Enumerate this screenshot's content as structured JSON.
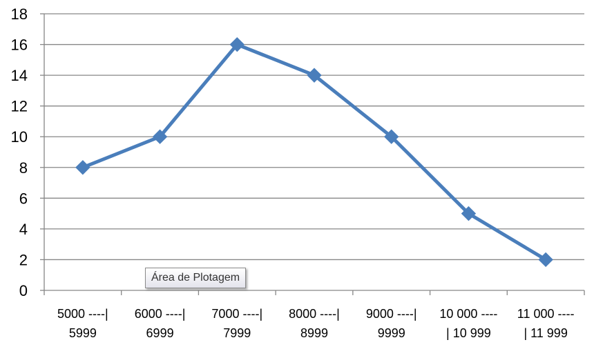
{
  "chart_data": {
    "type": "line",
    "categories": [
      [
        "5000 ----|",
        "5999"
      ],
      [
        "6000 ----|",
        "6999"
      ],
      [
        "7000 ----|",
        "7999"
      ],
      [
        "8000 ----|",
        "8999"
      ],
      [
        "9000 ----|",
        "9999"
      ],
      [
        "10 000 ----",
        "| 10 999"
      ],
      [
        "11 000 ----",
        "| 11 999"
      ]
    ],
    "series": [
      {
        "values": [
          8,
          10,
          16,
          14,
          10,
          5,
          2
        ],
        "color": "#4a7ebb",
        "marker": "diamond"
      }
    ],
    "ylim": [
      0,
      18
    ],
    "yticks": [
      0,
      2,
      4,
      6,
      8,
      10,
      12,
      14,
      16,
      18
    ],
    "grid": true,
    "legend": "none"
  },
  "tooltip": {
    "text": "Área de Plotagem"
  }
}
